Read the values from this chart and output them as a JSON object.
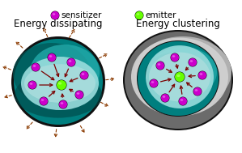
{
  "title_left": "Energy dissipating",
  "title_right": "Energy clustering",
  "legend_sensitizer": "sensitizer",
  "legend_emitter": "emitter",
  "sensitizer_color": "#CC00CC",
  "emitter_color": "#66FF00",
  "arrow_color": "#7B0000",
  "dashed_arrow_color": "#8B3A00",
  "bg_color": "#FFFFFF",
  "sphere_black": "#111111",
  "sphere_teal_top": "#007F7F",
  "sphere_teal_mid": "#009999",
  "sphere_teal_bottom": "#006060",
  "sphere_cut_face": "#99DDDD",
  "sphere_cut_face2": "#AADDDD",
  "shell_black": "#111111",
  "shell_gray_body": "#6B6B6B",
  "shell_gray_light": "#B0B0B0",
  "shell_gray_face": "#D0D0D0",
  "shell_gray_face2": "#C8C8C8",
  "title_fontsize": 8.5,
  "legend_fontsize": 7.5
}
